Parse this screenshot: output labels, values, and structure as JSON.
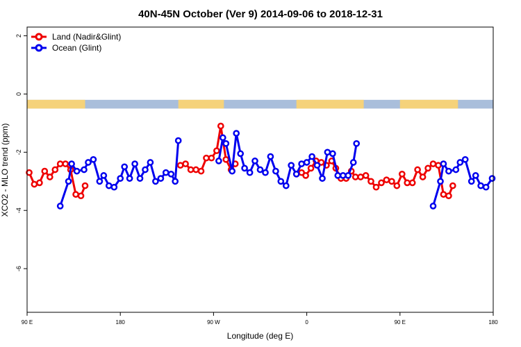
{
  "chart_data": {
    "type": "line",
    "title": "40N-45N October (Ver 9)   2014-09-06 to 2018-12-31",
    "xlabel": "Longitude (deg E)",
    "ylabel": "XCO2 - MLO trend (ppm)",
    "x_unit": "degrees longitude, unwrapped (90 E at left edge to 180 at right edge; 90 E shown twice)",
    "xlim": [
      90,
      540
    ],
    "ylim": [
      -7.5,
      2.3
    ],
    "x_ticks": [
      {
        "value": 90,
        "label": "90 E"
      },
      {
        "value": 180,
        "label": "180"
      },
      {
        "value": 270,
        "label": "90 W"
      },
      {
        "value": 360,
        "label": "0"
      },
      {
        "value": 450,
        "label": "90 E"
      },
      {
        "value": 540,
        "label": "180"
      }
    ],
    "y_ticks": [
      {
        "value": 2,
        "label": "2"
      },
      {
        "value": 0,
        "label": "0"
      },
      {
        "value": -2,
        "label": "-2"
      },
      {
        "value": -4,
        "label": "-4"
      },
      {
        "value": -6,
        "label": "-6"
      }
    ],
    "legend_position": "top-left",
    "colors": {
      "land": "#ee0000",
      "ocean": "#0000ee",
      "strip_land": "#f5d27a",
      "strip_ocean": "#a9bedb"
    },
    "land_mask": {
      "y_range": [
        -0.2,
        -0.5
      ],
      "land_segments": [
        [
          90,
          146
        ],
        [
          236,
          280
        ],
        [
          350,
          415
        ],
        [
          450,
          506
        ]
      ]
    },
    "series": [
      {
        "name": "Land (Nadir&Glint)",
        "color": "#ee0000",
        "segments": [
          [
            [
              92,
              -2.7
            ],
            [
              97,
              -3.1
            ],
            [
              102,
              -3.05
            ],
            [
              107,
              -2.65
            ],
            [
              112,
              -2.85
            ],
            [
              117,
              -2.6
            ],
            [
              122,
              -2.4
            ],
            [
              127,
              -2.4
            ],
            [
              132,
              -2.6
            ],
            [
              137,
              -3.45
            ],
            [
              142,
              -3.5
            ],
            [
              146,
              -3.15
            ]
          ],
          [
            [
              238,
              -2.45
            ],
            [
              243,
              -2.4
            ],
            [
              248,
              -2.6
            ],
            [
              253,
              -2.6
            ],
            [
              258,
              -2.65
            ],
            [
              263,
              -2.2
            ],
            [
              268,
              -2.2
            ],
            [
              273,
              -1.95
            ],
            [
              277,
              -1.1
            ],
            [
              282,
              -2.25
            ],
            [
              287,
              -2.6
            ],
            [
              291,
              -2.4
            ]
          ],
          [
            [
              350,
              -2.75
            ],
            [
              355,
              -2.7
            ],
            [
              359,
              -2.8
            ],
            [
              364,
              -2.55
            ],
            [
              369,
              -2.3
            ],
            [
              374,
              -2.35
            ],
            [
              379,
              -2.45
            ],
            [
              384,
              -2.3
            ],
            [
              388,
              -2.55
            ],
            [
              393,
              -2.9
            ],
            [
              398,
              -2.9
            ],
            [
              403,
              -2.65
            ],
            [
              407,
              -2.85
            ],
            [
              412,
              -2.85
            ],
            [
              417,
              -2.8
            ],
            [
              422,
              -3.0
            ],
            [
              427,
              -3.2
            ],
            [
              432,
              -3.05
            ],
            [
              437,
              -2.95
            ],
            [
              442,
              -3.0
            ],
            [
              447,
              -3.15
            ],
            [
              452,
              -2.75
            ],
            [
              457,
              -3.05
            ],
            [
              462,
              -3.05
            ],
            [
              467,
              -2.6
            ],
            [
              472,
              -2.85
            ],
            [
              477,
              -2.55
            ],
            [
              482,
              -2.4
            ],
            [
              487,
              -2.45
            ],
            [
              492,
              -3.45
            ],
            [
              497,
              -3.5
            ],
            [
              501,
              -3.15
            ]
          ]
        ]
      },
      {
        "name": "Ocean (Glint)",
        "color": "#0000ee",
        "segments": [
          [
            [
              122,
              -3.85
            ],
            [
              130,
              -3.0
            ],
            [
              133,
              -2.4
            ],
            [
              138,
              -2.65
            ],
            [
              145,
              -2.6
            ],
            [
              149,
              -2.35
            ],
            [
              154,
              -2.25
            ],
            [
              160,
              -3.0
            ],
            [
              164,
              -2.8
            ],
            [
              169,
              -3.15
            ],
            [
              174,
              -3.2
            ],
            [
              180,
              -2.9
            ],
            [
              184,
              -2.5
            ],
            [
              189,
              -2.9
            ],
            [
              194,
              -2.4
            ],
            [
              199,
              -2.9
            ],
            [
              204,
              -2.6
            ],
            [
              209,
              -2.35
            ],
            [
              214,
              -3.0
            ],
            [
              219,
              -2.9
            ],
            [
              224,
              -2.7
            ],
            [
              229,
              -2.75
            ],
            [
              233,
              -3.0
            ],
            [
              236,
              -1.6
            ]
          ],
          [
            [
              275,
              -2.3
            ],
            [
              279,
              -1.5
            ],
            [
              282,
              -1.7
            ],
            [
              288,
              -2.65
            ],
            [
              292,
              -1.35
            ],
            [
              296,
              -2.05
            ],
            [
              300,
              -2.55
            ],
            [
              305,
              -2.7
            ],
            [
              310,
              -2.3
            ],
            [
              315,
              -2.6
            ],
            [
              320,
              -2.7
            ],
            [
              325,
              -2.15
            ],
            [
              330,
              -2.65
            ],
            [
              335,
              -3.0
            ],
            [
              340,
              -3.15
            ],
            [
              345,
              -2.45
            ],
            [
              350,
              -2.75
            ],
            [
              355,
              -2.4
            ],
            [
              360,
              -2.35
            ],
            [
              365,
              -2.15
            ],
            [
              370,
              -2.45
            ],
            [
              375,
              -2.9
            ],
            [
              380,
              -2.0
            ],
            [
              385,
              -2.05
            ],
            [
              390,
              -2.8
            ],
            [
              395,
              -2.8
            ],
            [
              400,
              -2.8
            ],
            [
              405,
              -2.35
            ],
            [
              408,
              -1.7
            ]
          ],
          [
            [
              482,
              -3.85
            ],
            [
              489,
              -3.0
            ],
            [
              492,
              -2.4
            ],
            [
              497,
              -2.65
            ],
            [
              504,
              -2.6
            ],
            [
              508,
              -2.35
            ],
            [
              513,
              -2.25
            ],
            [
              519,
              -3.0
            ],
            [
              523,
              -2.8
            ],
            [
              528,
              -3.15
            ],
            [
              533,
              -3.2
            ],
            [
              539,
              -2.9
            ]
          ]
        ]
      }
    ]
  }
}
